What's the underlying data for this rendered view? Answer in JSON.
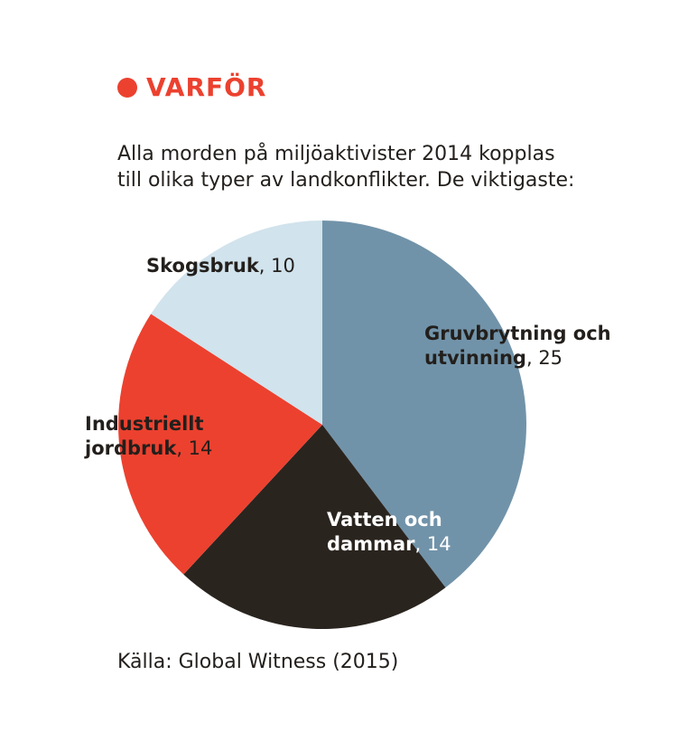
{
  "kicker": {
    "text": "VARFÖR",
    "color": "#ec412f"
  },
  "subtitle": {
    "line1": "Alla morden på miljöaktivister 2014 kopplas",
    "line2": "till olika typer av landkonflikter. De viktigaste:"
  },
  "chart_data": {
    "type": "pie",
    "start_angle_deg": 0,
    "direction": "clockwise",
    "slices": [
      {
        "name_lines": [
          "Gruvbrytning och",
          "utvinning"
        ],
        "value": 25,
        "value_text": ", 25",
        "color": "#7193a9",
        "label_style": "dark"
      },
      {
        "name_lines": [
          "Vatten och",
          "dammar"
        ],
        "value": 14,
        "value_text": ", 14",
        "color": "#2a241f",
        "label_style": "light"
      },
      {
        "name_lines": [
          "Industriellt",
          "jordbruk"
        ],
        "value": 14,
        "value_text": ", 14",
        "color": "#ec412f",
        "label_style": "dark"
      },
      {
        "name_lines": [
          "Skogsbruk"
        ],
        "value": 10,
        "value_text": ", 10",
        "color": "#d1e3ec",
        "label_style": "dark"
      }
    ]
  },
  "source": "Källa: Global Witness (2015)"
}
